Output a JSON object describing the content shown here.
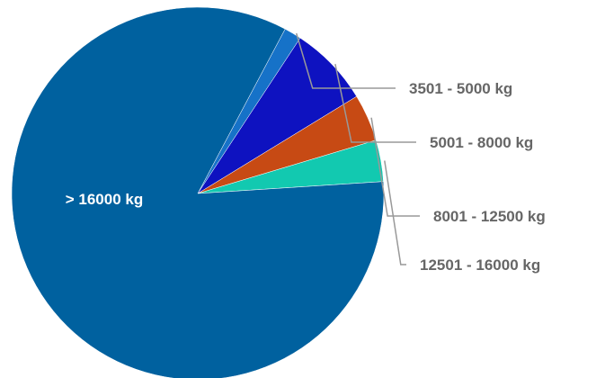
{
  "chart_data": {
    "type": "pie",
    "title": "",
    "slices": [
      {
        "label": "3501 - 5000 kg",
        "value": 1.5,
        "color": "#1672c8"
      },
      {
        "label": "5001 - 8000 kg",
        "value": 7.0,
        "color": "#0e12c0"
      },
      {
        "label": "8001 - 12500 kg",
        "value": 4.1,
        "color": "#c74a14"
      },
      {
        "label": "12501 - 16000 kg",
        "value": 3.6,
        "color": "#12c9b0"
      },
      {
        "label": "> 16000 kg",
        "value": 83.8,
        "color": "#00619f"
      }
    ],
    "legend": "none",
    "data_labels": "outside with leader lines; largest slice labeled inside"
  }
}
